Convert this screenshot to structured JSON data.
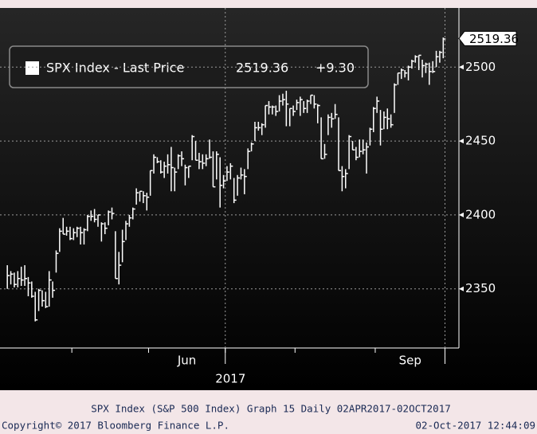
{
  "chart_data": {
    "type": "ohlc",
    "legend": {
      "name": "SPX Index - Last Price",
      "last_price": 2519.36,
      "change": {
        "value": 9.3,
        "label": "+9.30"
      }
    },
    "series": [
      {
        "name": "SPX Index - Last Price",
        "color": "#ffffff",
        "values": [
          2359,
          2360,
          2353,
          2357,
          2356,
          2357,
          2354,
          2345,
          2329,
          2349,
          2342,
          2338,
          2356,
          2349,
          2374,
          2389,
          2387,
          2389,
          2384,
          2388,
          2391,
          2388,
          2390,
          2399,
          2399,
          2397,
          2400,
          2394,
          2391,
          2402,
          2401,
          2357,
          2366,
          2382,
          2394,
          2398,
          2404,
          2415,
          2416,
          2413,
          2412,
          2430,
          2439,
          2436,
          2429,
          2433,
          2434,
          2432,
          2429,
          2440,
          2438,
          2432,
          2433,
          2453,
          2437,
          2436,
          2435,
          2438,
          2439,
          2419,
          2441,
          2420,
          2423,
          2429,
          2433,
          2410,
          2425,
          2427,
          2426,
          2443,
          2448,
          2459,
          2459,
          2461,
          2474,
          2473,
          2473,
          2470,
          2477,
          2478,
          2475,
          2472,
          2470,
          2476,
          2478,
          2472,
          2477,
          2481,
          2475,
          2474,
          2438,
          2441,
          2466,
          2465,
          2468,
          2430,
          2426,
          2428,
          2453,
          2444,
          2439,
          2443,
          2444,
          2446,
          2458,
          2472,
          2477,
          2458,
          2466,
          2465,
          2461,
          2488,
          2496,
          2498,
          2496,
          2500,
          2504,
          2507,
          2508,
          2501,
          2502,
          2497,
          2497,
          2507,
          2510,
          2519
        ],
        "high": [
          2366,
          2362,
          2361,
          2362,
          2365,
          2366,
          2358,
          2355,
          2348,
          2350,
          2349,
          2348,
          2362,
          2355,
          2376,
          2391,
          2398,
          2392,
          2392,
          2391,
          2392,
          2392,
          2391,
          2400,
          2403,
          2404,
          2400,
          2395,
          2395,
          2403,
          2405,
          2389,
          2375,
          2390,
          2396,
          2400,
          2405,
          2418,
          2416,
          2416,
          2415,
          2430,
          2441,
          2439,
          2437,
          2436,
          2441,
          2446,
          2432,
          2441,
          2443,
          2434,
          2433,
          2454,
          2450,
          2442,
          2441,
          2441,
          2451,
          2443,
          2443,
          2439,
          2427,
          2433,
          2435,
          2425,
          2427,
          2432,
          2431,
          2445,
          2449,
          2463,
          2463,
          2462,
          2474,
          2477,
          2474,
          2474,
          2481,
          2482,
          2484,
          2472,
          2474,
          2478,
          2480,
          2477,
          2478,
          2481,
          2481,
          2475,
          2466,
          2448,
          2468,
          2469,
          2475,
          2466,
          2433,
          2431,
          2454,
          2450,
          2446,
          2451,
          2451,
          2449,
          2459,
          2473,
          2480,
          2471,
          2470,
          2472,
          2468,
          2489,
          2496,
          2499,
          2498,
          2501,
          2505,
          2508,
          2508,
          2505,
          2503,
          2503,
          2504,
          2511,
          2511,
          2520
        ],
        "low": [
          2350,
          2353,
          2351,
          2351,
          2352,
          2352,
          2345,
          2344,
          2328,
          2335,
          2338,
          2337,
          2338,
          2344,
          2361,
          2375,
          2387,
          2386,
          2383,
          2383,
          2385,
          2380,
          2380,
          2389,
          2396,
          2395,
          2392,
          2382,
          2387,
          2393,
          2397,
          2357,
          2353,
          2368,
          2383,
          2392,
          2397,
          2407,
          2409,
          2408,
          2403,
          2413,
          2428,
          2435,
          2428,
          2425,
          2428,
          2416,
          2416,
          2431,
          2433,
          2420,
          2425,
          2437,
          2437,
          2431,
          2431,
          2433,
          2438,
          2419,
          2424,
          2405,
          2418,
          2423,
          2424,
          2408,
          2413,
          2424,
          2414,
          2431,
          2443,
          2450,
          2457,
          2454,
          2459,
          2468,
          2468,
          2467,
          2470,
          2474,
          2460,
          2460,
          2467,
          2471,
          2467,
          2469,
          2469,
          2475,
          2472,
          2462,
          2438,
          2438,
          2454,
          2459,
          2465,
          2430,
          2416,
          2418,
          2431,
          2444,
          2437,
          2439,
          2441,
          2428,
          2447,
          2456,
          2469,
          2447,
          2458,
          2458,
          2459,
          2469,
          2488,
          2492,
          2493,
          2491,
          2499,
          2503,
          2498,
          2493,
          2496,
          2488,
          2496,
          2500,
          2503,
          2506
        ]
      }
    ],
    "ylim": [
      2310,
      2540
    ],
    "yticks": [
      2350,
      2400,
      2450,
      2500
    ],
    "grid": true,
    "xlim": [
      -0.5,
      129.5
    ],
    "xticks": [
      18.5,
      40.5,
      62.5,
      82.5,
      105.5,
      125.5
    ],
    "xgrid": [
      62.5,
      125.5
    ],
    "xlabels": [
      {
        "value": 51.5,
        "label": "Jun"
      },
      {
        "value": 115.5,
        "label": "Sep"
      }
    ],
    "xsublabel": {
      "value": 64,
      "label": "2017"
    },
    "footer": {
      "description": "SPX Index (S&P 500 Index) Graph 15  Daily 02APR2017-02OCT2017",
      "copyright": "Copyright© 2017 Bloomberg Finance L.P.",
      "timestamp": "02-Oct-2017 12:44:09"
    }
  }
}
